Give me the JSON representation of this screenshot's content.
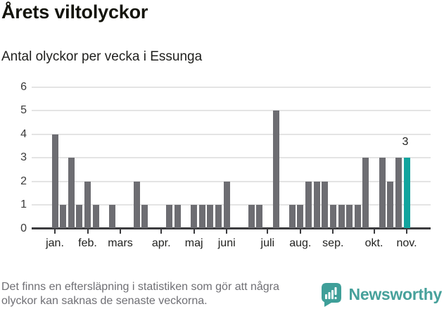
{
  "title": "Årets viltolyckor",
  "subtitle": "Antal olyckor per vecka i Essunga",
  "chart_data": {
    "type": "bar",
    "title": "Årets viltolyckor",
    "subtitle": "Antal olyckor per vecka i Essunga",
    "x_unit": "vecka",
    "weeks": [
      1,
      2,
      3,
      4,
      5,
      6,
      7,
      8,
      9,
      10,
      11,
      12,
      13,
      14,
      15,
      16,
      17,
      18,
      19,
      20,
      21,
      22,
      23,
      24,
      25,
      26,
      27,
      28,
      29,
      30,
      31,
      32,
      33,
      34,
      35,
      36,
      37,
      38,
      39,
      40,
      41,
      42,
      43,
      44
    ],
    "values": [
      4,
      1,
      3,
      1,
      2,
      1,
      0,
      1,
      0,
      0,
      2,
      1,
      0,
      0,
      1,
      1,
      0,
      1,
      1,
      1,
      1,
      2,
      0,
      0,
      1,
      1,
      0,
      5,
      0,
      1,
      1,
      2,
      2,
      2,
      1,
      1,
      1,
      1,
      3,
      0,
      3,
      2,
      3,
      3
    ],
    "yticks": [
      0,
      1,
      2,
      3,
      4,
      5,
      6
    ],
    "ylim": [
      0,
      6
    ],
    "grid": true,
    "months": [
      {
        "label": "jan.",
        "week": 1
      },
      {
        "label": "feb.",
        "week": 5
      },
      {
        "label": "mars",
        "week": 9
      },
      {
        "label": "apr.",
        "week": 14
      },
      {
        "label": "maj",
        "week": 18
      },
      {
        "label": "juni",
        "week": 22
      },
      {
        "label": "juli",
        "week": 27
      },
      {
        "label": "aug.",
        "week": 31
      },
      {
        "label": "sep.",
        "week": 35
      },
      {
        "label": "okt.",
        "week": 40
      },
      {
        "label": "nov.",
        "week": 44
      }
    ],
    "bar_color": "#6d6d72",
    "highlight_color": "#12a49e",
    "highlight_last": true,
    "last_value_label": "3"
  },
  "footer": {
    "line1": "Det finns en eftersläpning i statistiken som gör att några",
    "line2": "olyckor kan saknas de senaste veckorna."
  },
  "branding": {
    "name": "Newsworthy",
    "color": "#47a19b",
    "icon": "newsworthy-chart-bubble-icon"
  }
}
